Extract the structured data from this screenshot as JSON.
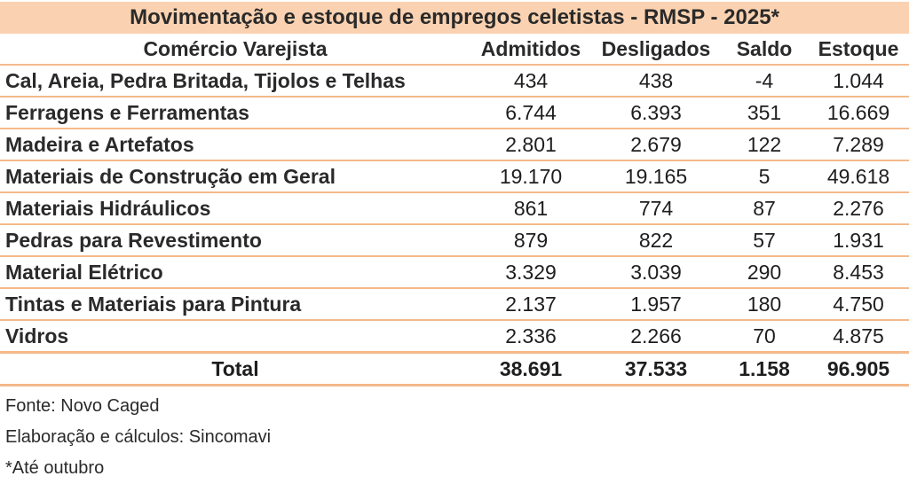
{
  "title": "Movimentação e estoque de empregos celetistas - RMSP - 2025*",
  "headers": {
    "name": "Comércio Varejista",
    "admitidos": "Admitidos",
    "desligados": "Desligados",
    "saldo": "Saldo",
    "estoque": "Estoque"
  },
  "rows": [
    {
      "name": "Cal, Areia, Pedra Britada, Tijolos e Telhas",
      "admitidos": "434",
      "desligados": "438",
      "saldo": "-4",
      "estoque": "1.044"
    },
    {
      "name": "Ferragens e Ferramentas",
      "admitidos": "6.744",
      "desligados": "6.393",
      "saldo": "351",
      "estoque": "16.669"
    },
    {
      "name": "Madeira e Artefatos",
      "admitidos": "2.801",
      "desligados": "2.679",
      "saldo": "122",
      "estoque": "7.289"
    },
    {
      "name": "Materiais de Construção em Geral",
      "admitidos": "19.170",
      "desligados": "19.165",
      "saldo": "5",
      "estoque": "49.618"
    },
    {
      "name": "Materiais Hidráulicos",
      "admitidos": "861",
      "desligados": "774",
      "saldo": "87",
      "estoque": "2.276"
    },
    {
      "name": "Pedras para Revestimento",
      "admitidos": "879",
      "desligados": "822",
      "saldo": "57",
      "estoque": "1.931"
    },
    {
      "name": "Material Elétrico",
      "admitidos": "3.329",
      "desligados": "3.039",
      "saldo": "290",
      "estoque": "8.453"
    },
    {
      "name": "Tintas e Materiais para Pintura",
      "admitidos": "2.137",
      "desligados": "1.957",
      "saldo": "180",
      "estoque": "4.750"
    },
    {
      "name": "Vidros",
      "admitidos": "2.336",
      "desligados": "2.266",
      "saldo": "70",
      "estoque": "4.875"
    }
  ],
  "total": {
    "name": "Total",
    "admitidos": "38.691",
    "desligados": "37.533",
    "saldo": "1.158",
    "estoque": "96.905"
  },
  "notes": {
    "source": "Fonte: Novo Caged",
    "elaboration": "Elaboração e cálculos: Sincomavi",
    "footnote": "*Até outubro"
  },
  "colors": {
    "title_background": "#fbd2b1",
    "row_divider": "#f4b98a"
  }
}
